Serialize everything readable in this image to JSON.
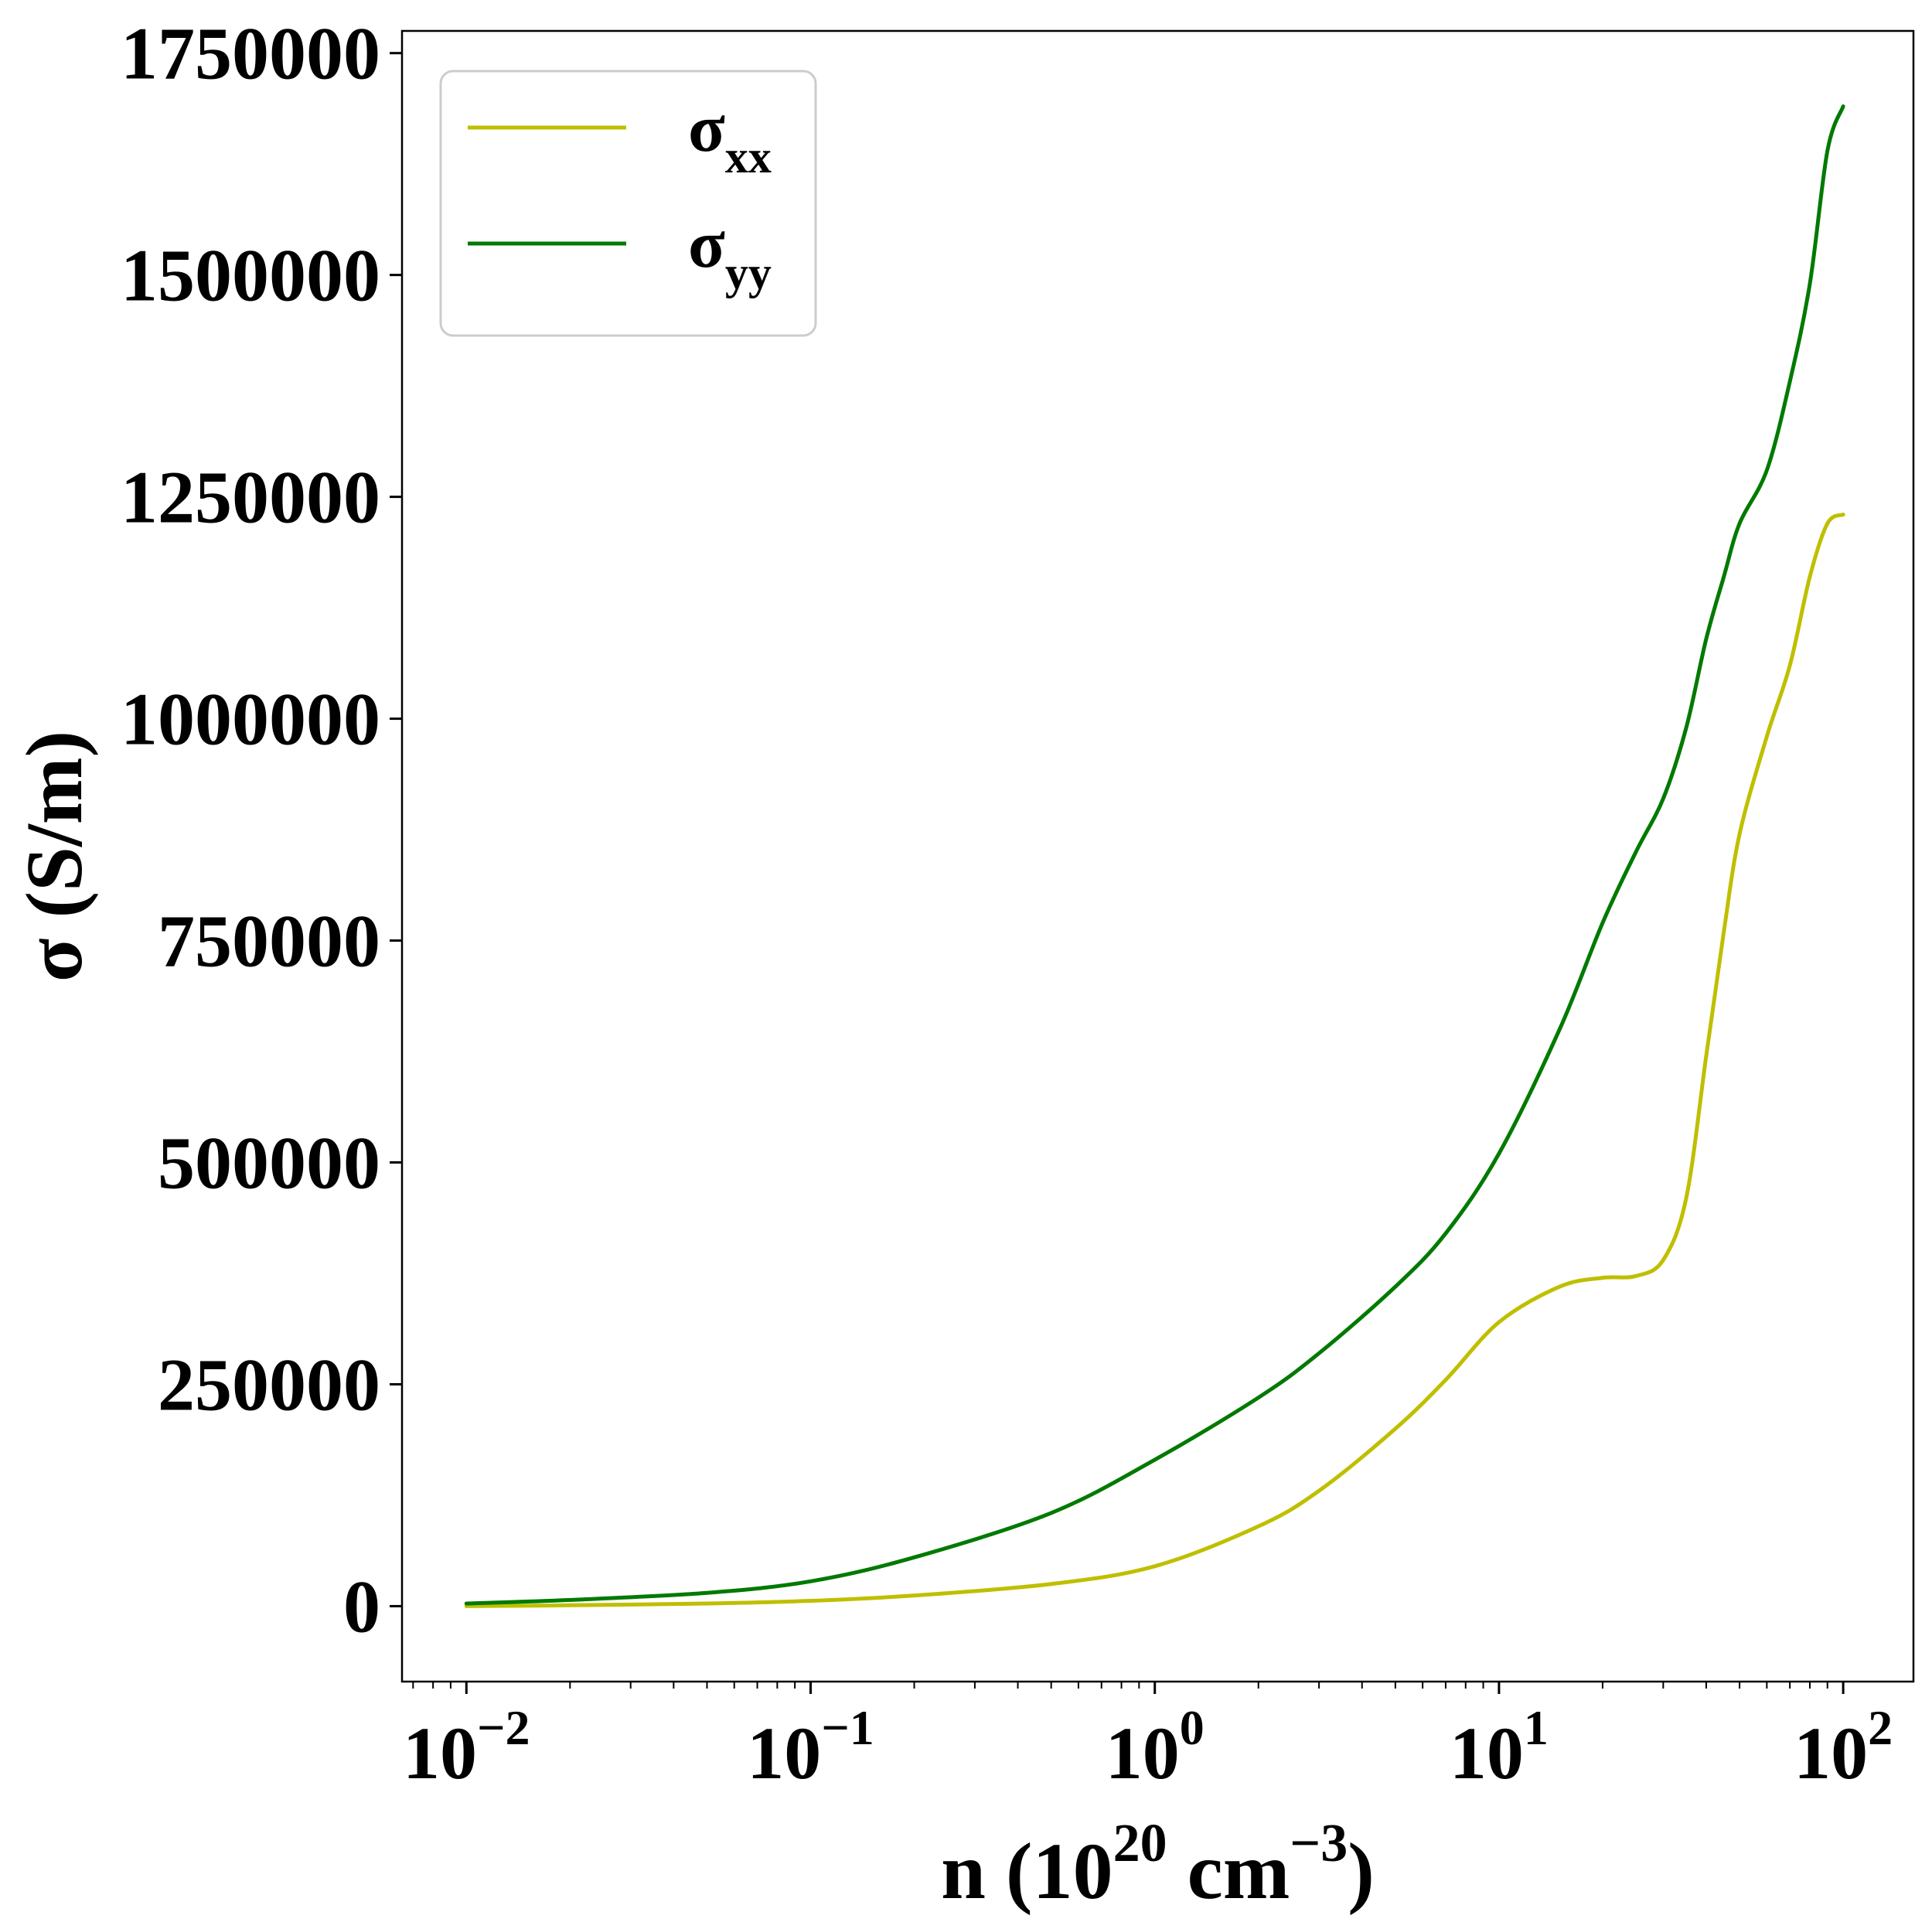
{
  "chart_data": {
    "type": "line",
    "xscale": "log",
    "xlim": [
      0.0065,
      160
    ],
    "ylim": [
      -85000,
      1775000
    ],
    "xlabel": {
      "base": "n (10",
      "sup1": "20",
      "mid": " cm",
      "sup2": "−3",
      "end": ")"
    },
    "ylabel": "σ (S/m)",
    "yticks": [
      0,
      250000,
      500000,
      750000,
      1000000,
      1250000,
      1500000,
      1750000
    ],
    "ytick_labels": [
      "0",
      "250000",
      "500000",
      "750000",
      "1000000",
      "1250000",
      "1500000",
      "1750000"
    ],
    "xticks": [
      0.01,
      0.1,
      1,
      10,
      100
    ],
    "xtick_labels": [
      {
        "base": "10",
        "exp": "−2"
      },
      {
        "base": "10",
        "exp": "−1"
      },
      {
        "base": "10",
        "exp": "0"
      },
      {
        "base": "10",
        "exp": "1"
      },
      {
        "base": "10",
        "exp": "2"
      }
    ],
    "grid": false,
    "legend": {
      "position": "top-left"
    },
    "series": [
      {
        "name": "σxx",
        "legend_main": "σ",
        "legend_sub": "xx",
        "color": "#bfbf00",
        "x": [
          0.01,
          0.02,
          0.05,
          0.1,
          0.2,
          0.5,
          1,
          2,
          3,
          5,
          7,
          10,
          15,
          20,
          25,
          30,
          35,
          40,
          45,
          50,
          60,
          70,
          80,
          90,
          100
        ],
        "y": [
          0,
          1000,
          3000,
          6000,
          12000,
          25000,
          45000,
          90000,
          130000,
          200000,
          255000,
          320000,
          360000,
          370000,
          372000,
          390000,
          460000,
          620000,
          760000,
          870000,
          980000,
          1060000,
          1160000,
          1220000,
          1230000
        ]
      },
      {
        "name": "σyy",
        "legend_main": "σ",
        "legend_sub": "yy",
        "color": "#007a00",
        "x": [
          0.01,
          0.02,
          0.05,
          0.1,
          0.2,
          0.5,
          1,
          2,
          3,
          5,
          7,
          10,
          15,
          20,
          25,
          30,
          35,
          40,
          45,
          50,
          60,
          70,
          80,
          90,
          100
        ],
        "y": [
          3000,
          7000,
          15000,
          28000,
          55000,
          105000,
          165000,
          235000,
          285000,
          360000,
          420000,
          510000,
          650000,
          770000,
          850000,
          910000,
          990000,
          1090000,
          1160000,
          1220000,
          1280000,
          1380000,
          1490000,
          1640000,
          1690000
        ]
      }
    ]
  }
}
